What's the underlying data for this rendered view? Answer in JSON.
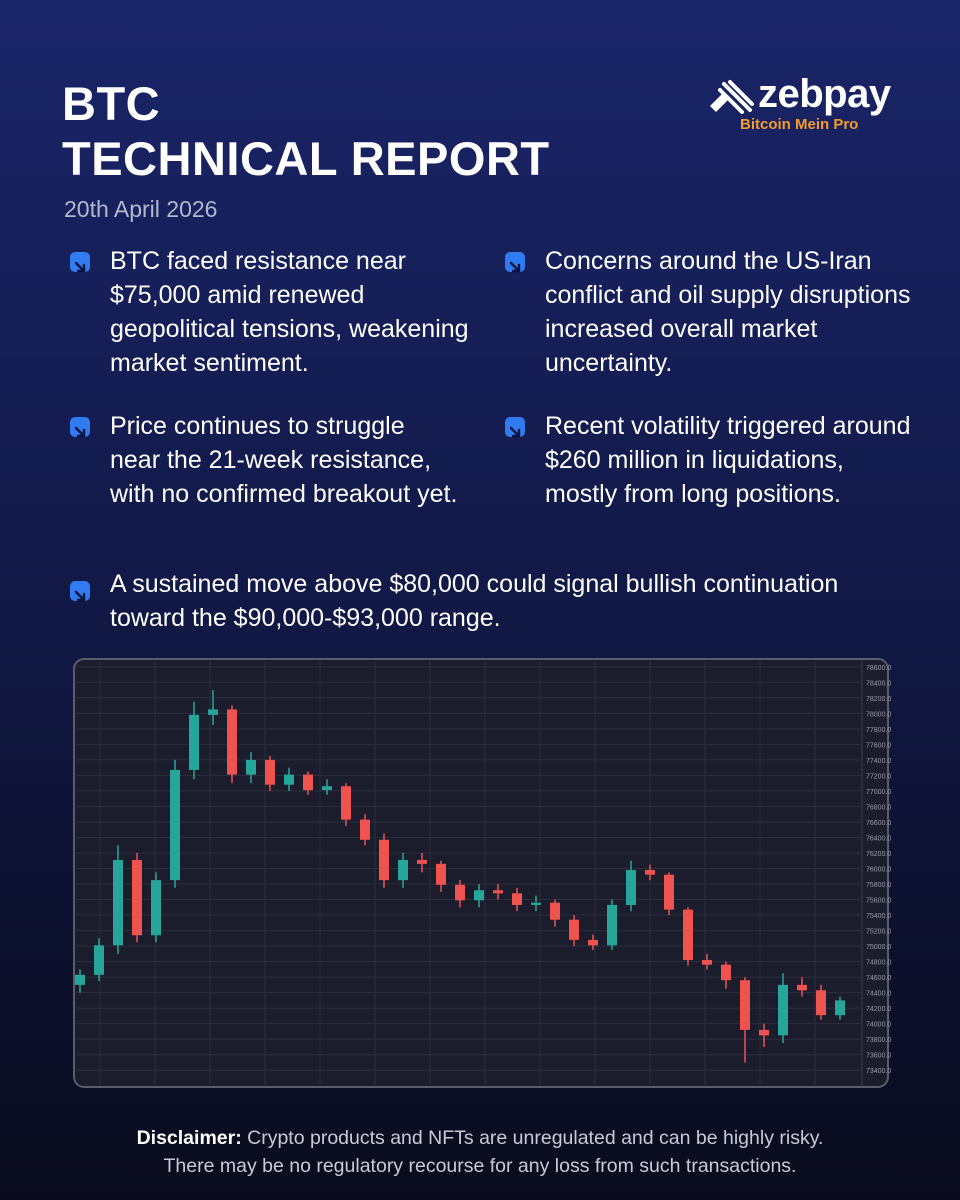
{
  "header": {
    "title_lines": [
      "BTC",
      "TECHNICAL REPORT"
    ],
    "date": "20th April 2026"
  },
  "logo": {
    "name": "zebpay",
    "tagline": "Bitcoin Mein Pro"
  },
  "bullets": [
    "BTC faced resistance near $75,000 amid renewed geopolitical tensions, weakening market sentiment.",
    "Concerns around the US-Iran conflict and oil supply disruptions increased overall market uncertainty.",
    "Price continues to struggle near the 21-week resistance, with no confirmed breakout yet.",
    "Recent volatility triggered around $260 million in liquidations, mostly from long positions.",
    "A sustained move above $80,000 could signal bullish continuation toward the $90,000-$93,000 range."
  ],
  "chart_data": {
    "type": "candlestick",
    "up_color": "#26a69a",
    "down_color": "#ef5350",
    "grid": true,
    "ylim": [
      73300,
      78700
    ],
    "yticks": [
      {
        "value": 78600,
        "label": "78600.0"
      },
      {
        "value": 78400,
        "label": "78400.0"
      },
      {
        "value": 78200,
        "label": "78200.0"
      },
      {
        "value": 78000,
        "label": "78000.0"
      },
      {
        "value": 77800,
        "label": "77800.0"
      },
      {
        "value": 77600,
        "label": "77600.0"
      },
      {
        "value": 77400,
        "label": "77400.0"
      },
      {
        "value": 77200,
        "label": "77200.0"
      },
      {
        "value": 77000,
        "label": "77000.0"
      },
      {
        "value": 76800,
        "label": "76800.0"
      },
      {
        "value": 76600,
        "label": "76600.0"
      },
      {
        "value": 76400,
        "label": "76400.0"
      },
      {
        "value": 76200,
        "label": "76200.0"
      },
      {
        "value": 76000,
        "label": "76000.0"
      },
      {
        "value": 75800,
        "label": "75800.0"
      },
      {
        "value": 75600,
        "label": "75600.0"
      },
      {
        "value": 75400,
        "label": "75400.0"
      },
      {
        "value": 75200,
        "label": "75200.0"
      },
      {
        "value": 75000,
        "label": "75000.0"
      },
      {
        "value": 74800,
        "label": "74800.0"
      },
      {
        "value": 74600,
        "label": "74600.0"
      },
      {
        "value": 74400,
        "label": "74400.0"
      },
      {
        "value": 74200,
        "label": "74200.0"
      },
      {
        "value": 74000,
        "label": "74000.0"
      },
      {
        "value": 73800,
        "label": "73800.0"
      },
      {
        "value": 73600,
        "label": "73600.0"
      },
      {
        "value": 73400,
        "label": "73400.0"
      }
    ],
    "open": [
      74500,
      74630,
      75010,
      76110,
      75140,
      75850,
      77270,
      77980,
      78050,
      77210,
      77400,
      77080,
      77210,
      77010,
      77060,
      76630,
      76370,
      75850,
      76110,
      76060,
      75790,
      75590,
      75720,
      75680,
      75530,
      75560,
      75340,
      75080,
      75010,
      75530,
      75980,
      75920,
      75470,
      74820,
      74760,
      74560,
      73920,
      73850,
      74500,
      74430,
      74110
    ],
    "high": [
      74700,
      75100,
      76300,
      76200,
      75950,
      77400,
      78150,
      78300,
      78100,
      77500,
      77450,
      77300,
      77250,
      77150,
      77100,
      76700,
      76450,
      76200,
      76200,
      76100,
      75850,
      75800,
      75800,
      75750,
      75650,
      75600,
      75400,
      75150,
      75600,
      76100,
      76050,
      75950,
      75500,
      74900,
      74800,
      74600,
      74000,
      74650,
      74600,
      74500,
      74350
    ],
    "low": [
      74400,
      74550,
      74900,
      75050,
      75050,
      75750,
      77150,
      77850,
      77100,
      77100,
      77000,
      77000,
      76950,
      76950,
      76550,
      76300,
      75750,
      75750,
      75950,
      75700,
      75500,
      75500,
      75600,
      75450,
      75450,
      75250,
      75000,
      74950,
      74950,
      75450,
      75850,
      75400,
      74750,
      74700,
      74450,
      73500,
      73700,
      73750,
      74350,
      74050,
      74050
    ],
    "close": [
      74630,
      75010,
      76110,
      75140,
      75850,
      77270,
      77980,
      78050,
      77210,
      77400,
      77080,
      77210,
      77010,
      77060,
      76630,
      76370,
      75850,
      76110,
      76060,
      75790,
      75590,
      75720,
      75680,
      75530,
      75560,
      75340,
      75080,
      75010,
      75530,
      75980,
      75920,
      75470,
      74820,
      74760,
      74560,
      73920,
      73850,
      74500,
      74430,
      74110,
      74300
    ]
  },
  "disclaimer": {
    "label": "Disclaimer:",
    "text": [
      "Crypto products and NFTs are unregulated and can be highly risky.",
      "There may be no regulatory recourse for any loss from such transactions."
    ]
  }
}
